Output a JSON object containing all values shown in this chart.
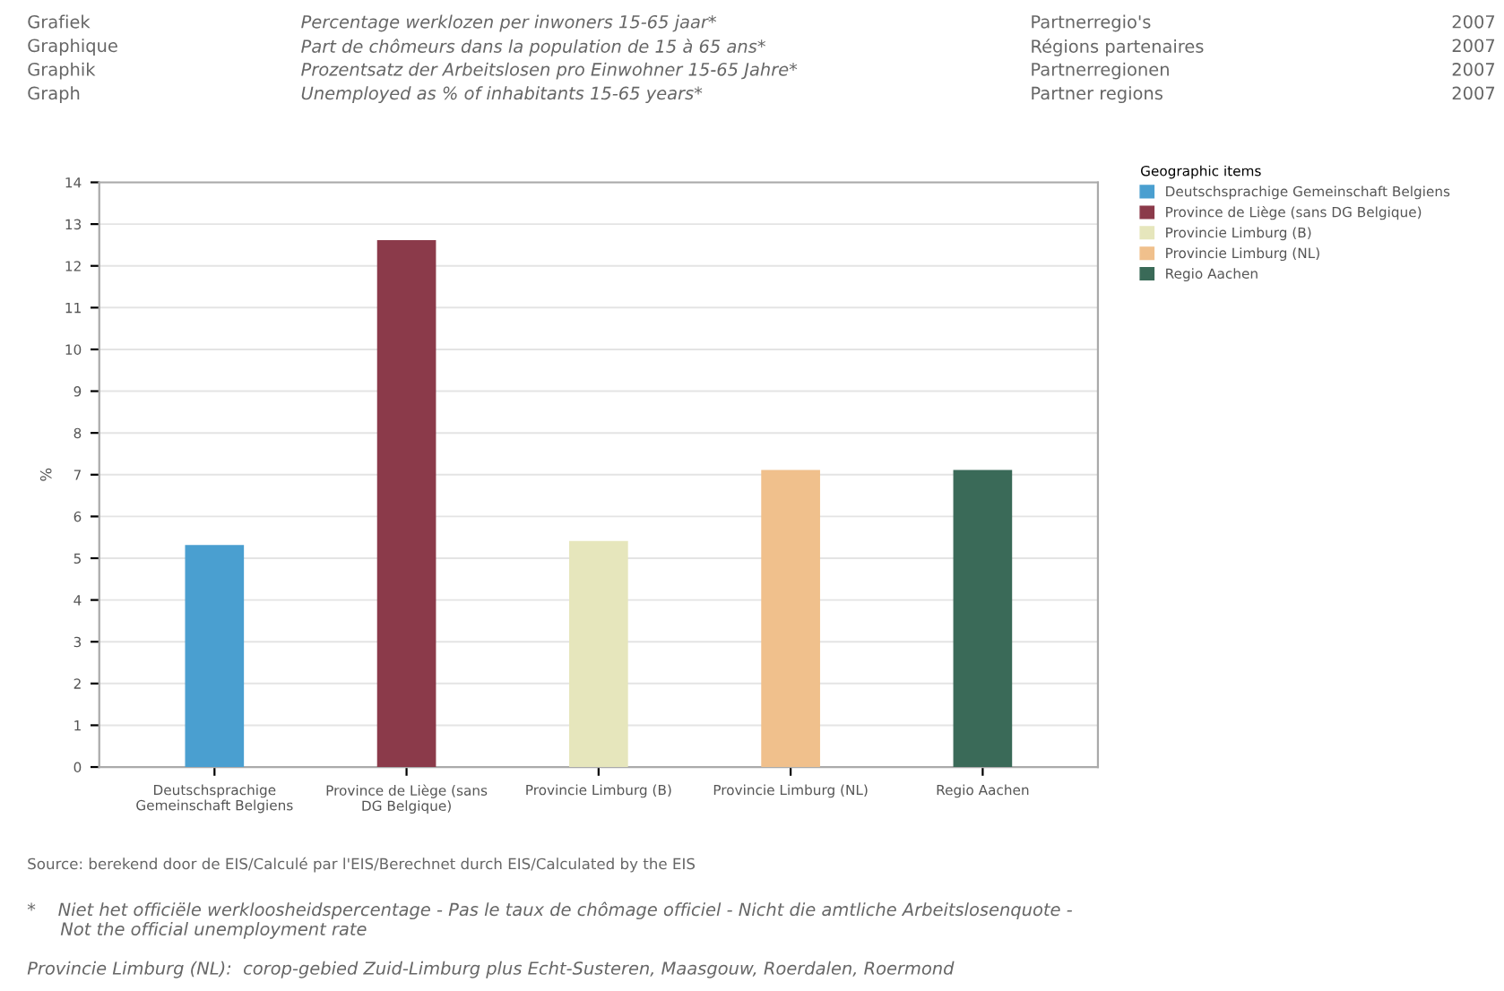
{
  "chart_data": {
    "type": "bar",
    "categories": [
      "Deutschsprachige\nGemeinschaft Belgiens",
      "Province de Liège (sans\nDG Belgique)",
      "Provincie Limburg (B)",
      "Provincie Limburg (NL)",
      "Regio Aachen"
    ],
    "series": [
      {
        "name": "Deutschsprachige Gemeinschaft Belgiens",
        "color": "#4a9fd0",
        "values": [
          5.3,
          null,
          null,
          null,
          null
        ]
      },
      {
        "name": "Province de Liège (sans DG Belgique)",
        "color": "#8b3a4a",
        "values": [
          null,
          12.6,
          null,
          null,
          null
        ]
      },
      {
        "name": "Provincie Limburg (B)",
        "color": "#e6e6bc",
        "values": [
          null,
          null,
          5.4,
          null,
          null
        ]
      },
      {
        "name": "Provincie Limburg (NL)",
        "color": "#f0c08c",
        "values": [
          null,
          null,
          null,
          7.1,
          null
        ]
      },
      {
        "name": "Regio Aachen",
        "color": "#3a6a58",
        "values": [
          null,
          null,
          null,
          null,
          7.1
        ]
      }
    ],
    "ylabel": "%",
    "ylim": [
      0,
      14
    ],
    "yticks": [
      0,
      1,
      2,
      3,
      4,
      5,
      6,
      7,
      8,
      9,
      10,
      11,
      12,
      13,
      14
    ],
    "grid": "y",
    "legend": "right",
    "legend_title": "Geographic items",
    "annotations": [
      "Grafiek",
      "Percentage werklozen per inwoners 15-65 jaar*",
      "Partnerregio's",
      "2007",
      "Graphique",
      "Part de chômeurs dans la population de 15 à 65 ans*",
      "Régions partenaires",
      "2007",
      "Graphik",
      "Prozentsatz der Arbeitslosen pro Einwohner 15-65 Jahre*",
      "Partnerregionen",
      "2007",
      "Graph",
      "Unemployed as % of inhabitants 15-65 years*",
      "Partner regions",
      "2007",
      "Source: berekend door de EIS/Calculé par l'EIS/Berechnet durch EIS/Calculated by the EIS",
      "*    Niet het officiële werkloosheidspercentage - Pas le taux de chômage officiel - Nicht die amtliche Arbeitslosenquote -\n      Not the official unemployment rate",
      "Provincie Limburg (NL):  corop-gebied Zuid-Limburg plus Echt-Susteren, Maasgouw, Roerdalen, Roermond"
    ]
  }
}
